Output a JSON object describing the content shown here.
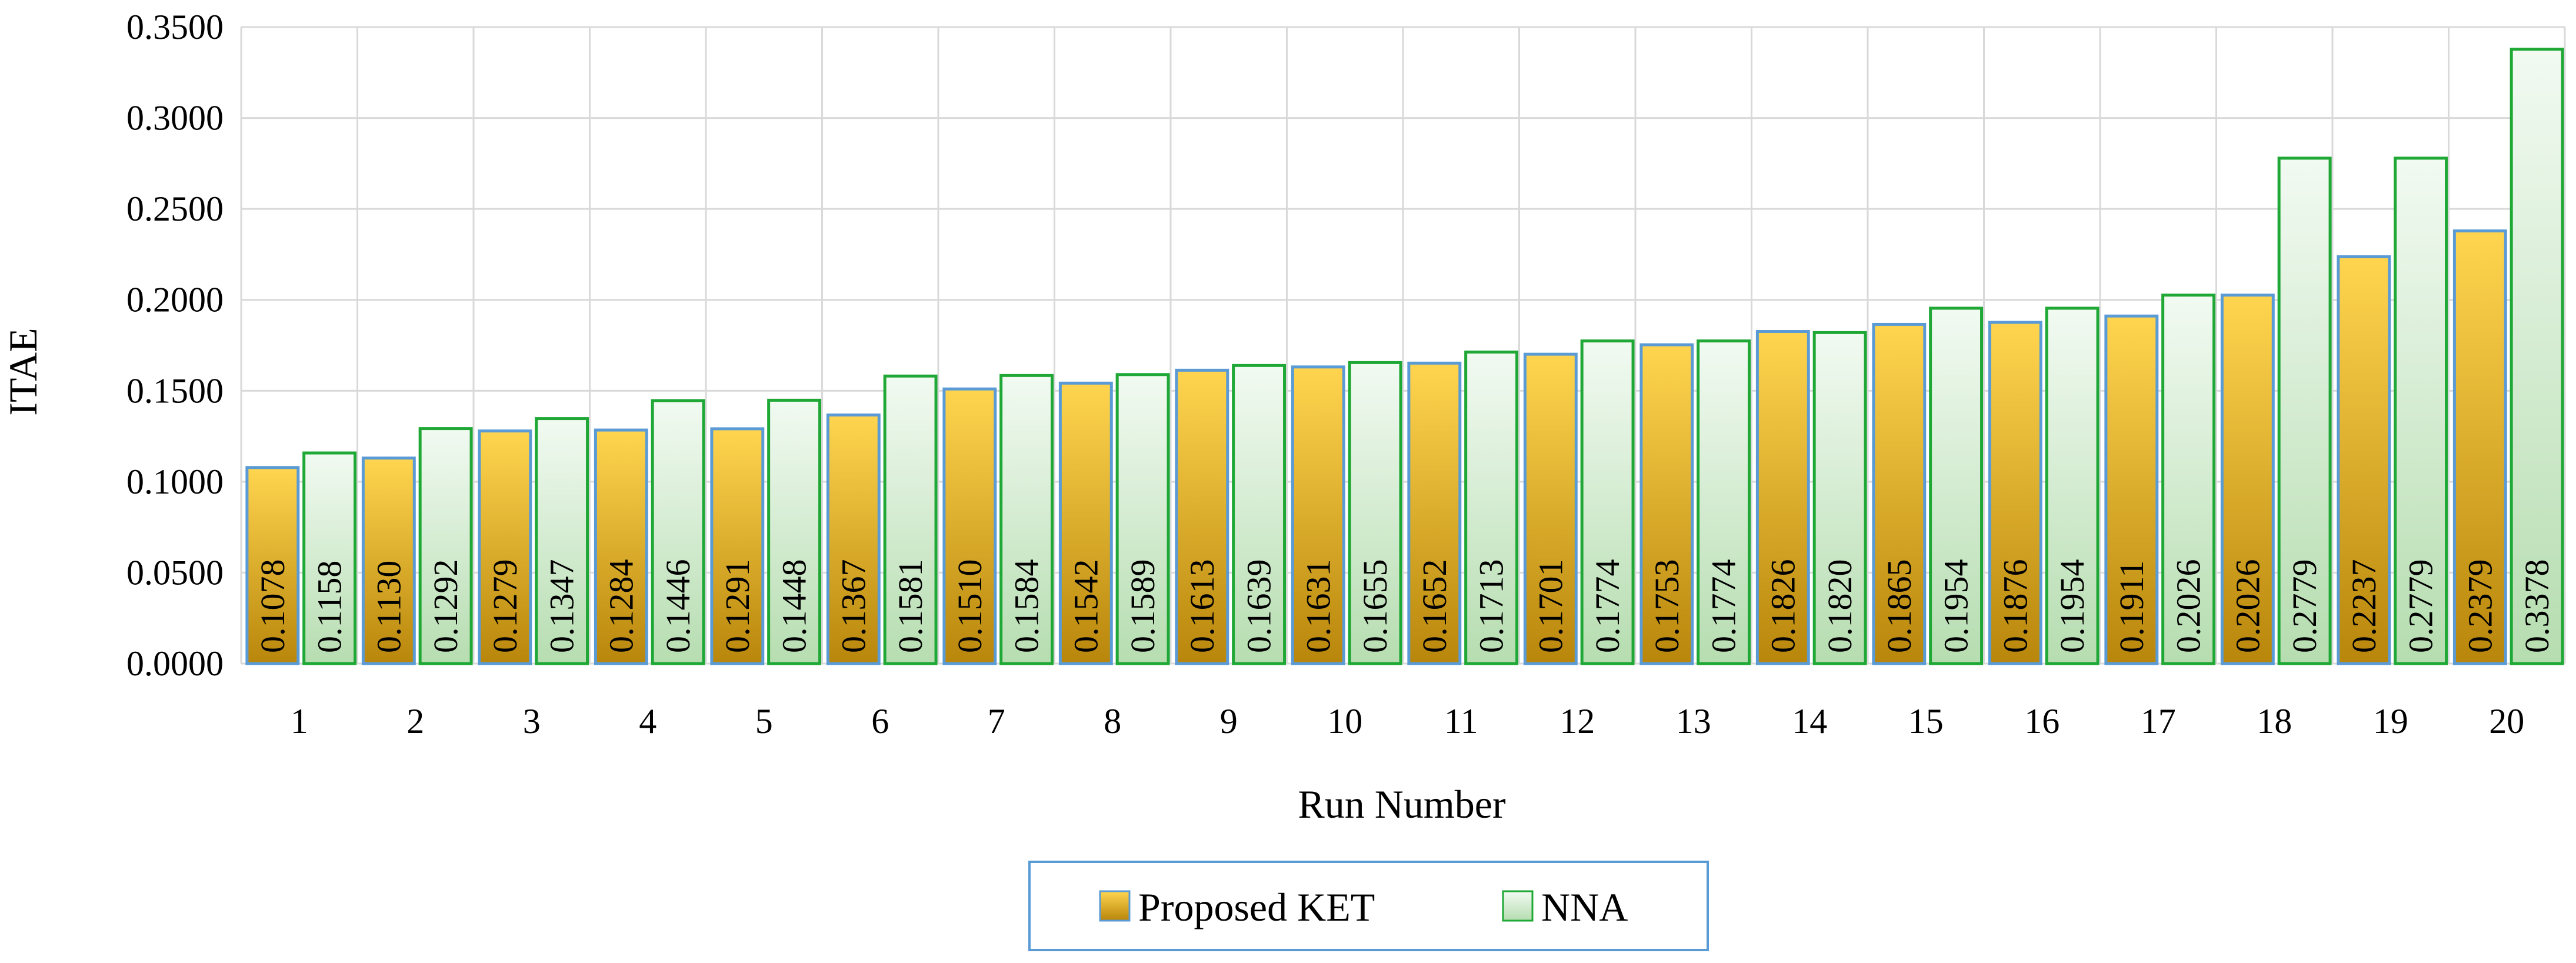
{
  "chart_data": {
    "type": "bar",
    "title": "",
    "xlabel": "Run Number",
    "ylabel": "ITAE",
    "ylim": [
      0,
      0.35
    ],
    "ytick_step": 0.05,
    "ytick_decimals": 4,
    "value_decimals": 4,
    "grid": true,
    "legend_position": "bottom-center",
    "categories": [
      "1",
      "2",
      "3",
      "4",
      "5",
      "6",
      "7",
      "8",
      "9",
      "10",
      "11",
      "12",
      "13",
      "14",
      "15",
      "16",
      "17",
      "18",
      "19",
      "20"
    ],
    "series": [
      {
        "name": "Proposed KET",
        "color_top": "#FFD54F",
        "color_bottom": "#B8860B",
        "border": "#5B9BD5",
        "values": [
          0.1078,
          0.113,
          0.1279,
          0.1284,
          0.1291,
          0.1367,
          0.151,
          0.1542,
          0.1613,
          0.1631,
          0.1652,
          0.1701,
          0.1753,
          0.1826,
          0.1865,
          0.1876,
          0.1911,
          0.2026,
          0.2237,
          0.2379
        ]
      },
      {
        "name": "NNA",
        "color_top": "#F2FAF2",
        "color_bottom": "#B6DDB0",
        "border": "#1FA836",
        "values": [
          0.1158,
          0.1292,
          0.1347,
          0.1446,
          0.1448,
          0.1581,
          0.1584,
          0.1589,
          0.1639,
          0.1655,
          0.1713,
          0.1774,
          0.1774,
          0.182,
          0.1954,
          0.1954,
          0.2026,
          0.2779,
          0.2779,
          0.3378
        ]
      }
    ]
  }
}
